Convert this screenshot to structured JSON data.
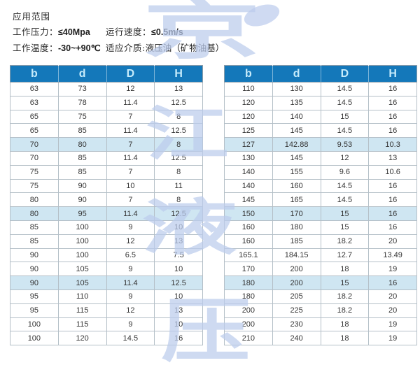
{
  "info": {
    "title": "应用范围",
    "items": [
      {
        "label": "工作压力：",
        "value": "≤40Mpa"
      },
      {
        "label": "运行速度：",
        "value": "≤0.5m/s"
      },
      {
        "label": "工作温度：",
        "value": "-30~+90℃"
      },
      {
        "label": "适应介质:",
        "value": "液压油（矿物油基）"
      }
    ]
  },
  "columns": [
    "b",
    "d",
    "D",
    "H"
  ],
  "tables": [
    {
      "rows": [
        [
          "63",
          "73",
          "12",
          "13"
        ],
        [
          "63",
          "78",
          "11.4",
          "12.5"
        ],
        [
          "65",
          "75",
          "7",
          "8"
        ],
        [
          "65",
          "85",
          "11.4",
          "12.5"
        ],
        [
          "70",
          "80",
          "7",
          "8"
        ],
        [
          "70",
          "85",
          "11.4",
          "12.5"
        ],
        [
          "75",
          "85",
          "7",
          "8"
        ],
        [
          "75",
          "90",
          "10",
          "11"
        ],
        [
          "80",
          "90",
          "7",
          "8"
        ],
        [
          "80",
          "95",
          "11.4",
          "12.5"
        ],
        [
          "85",
          "100",
          "9",
          "10"
        ],
        [
          "85",
          "100",
          "12",
          "13"
        ],
        [
          "90",
          "100",
          "6.5",
          "7.5"
        ],
        [
          "90",
          "105",
          "9",
          "10"
        ],
        [
          "90",
          "105",
          "11.4",
          "12.5"
        ],
        [
          "95",
          "110",
          "9",
          "10"
        ],
        [
          "95",
          "115",
          "12",
          "13"
        ],
        [
          "100",
          "115",
          "9",
          "10"
        ],
        [
          "100",
          "120",
          "14.5",
          "16"
        ]
      ],
      "highlight_rows": [
        4,
        9,
        14
      ]
    },
    {
      "rows": [
        [
          "110",
          "130",
          "14.5",
          "16"
        ],
        [
          "120",
          "135",
          "14.5",
          "16"
        ],
        [
          "120",
          "140",
          "15",
          "16"
        ],
        [
          "125",
          "145",
          "14.5",
          "16"
        ],
        [
          "127",
          "142.88",
          "9.53",
          "10.3"
        ],
        [
          "130",
          "145",
          "12",
          "13"
        ],
        [
          "140",
          "155",
          "9.6",
          "10.6"
        ],
        [
          "140",
          "160",
          "14.5",
          "16"
        ],
        [
          "145",
          "165",
          "14.5",
          "16"
        ],
        [
          "150",
          "170",
          "15",
          "16"
        ],
        [
          "160",
          "180",
          "15",
          "16"
        ],
        [
          "160",
          "185",
          "18.2",
          "20"
        ],
        [
          "165.1",
          "184.15",
          "12.7",
          "13.49"
        ],
        [
          "170",
          "200",
          "18",
          "19"
        ],
        [
          "180",
          "200",
          "15",
          "16"
        ],
        [
          "180",
          "205",
          "18.2",
          "20"
        ],
        [
          "200",
          "225",
          "18.2",
          "20"
        ],
        [
          "200",
          "230",
          "18",
          "19"
        ],
        [
          "210",
          "240",
          "18",
          "19"
        ]
      ],
      "highlight_rows": [
        4,
        9,
        14
      ]
    }
  ],
  "watermark": {
    "chars": [
      "京",
      "江",
      "液",
      "压"
    ]
  },
  "colors": {
    "header_bg": "#1478ba",
    "header_text": "#c6ebfb",
    "row_highlight": "#cfe6f2",
    "watermark": "#bccced"
  }
}
